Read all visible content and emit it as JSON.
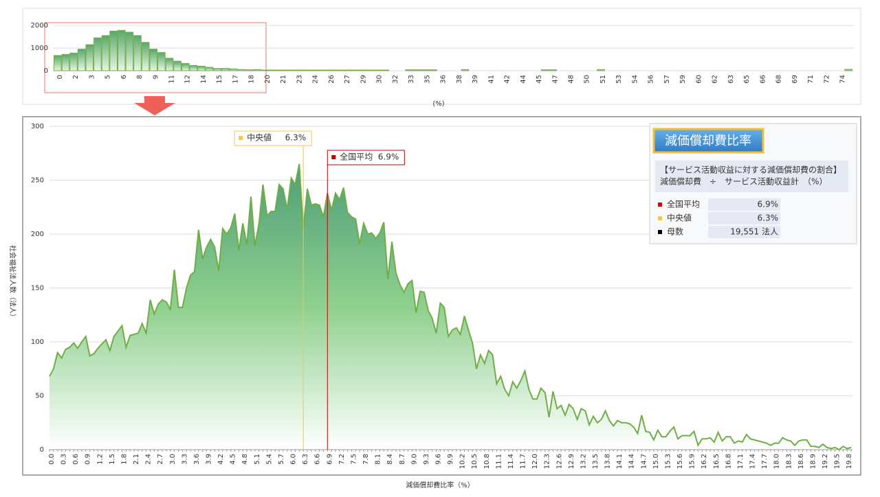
{
  "chart_data": [
    {
      "type": "bar",
      "x_label": "(%)",
      "color": "#70ad47",
      "categories": [
        "0",
        null,
        "2",
        null,
        "3",
        null,
        "5",
        null,
        "6",
        null,
        "8",
        null,
        "9",
        null,
        "11",
        null,
        "12",
        null,
        "14",
        null,
        "15",
        null,
        "17",
        null,
        "18",
        null,
        "20",
        null,
        "21",
        null,
        "23",
        null,
        "24",
        null,
        "26",
        null,
        "27",
        null,
        "29",
        null,
        "30",
        null,
        "32",
        null,
        "33",
        null,
        "35",
        null,
        "36",
        null,
        "38",
        null,
        "39",
        null,
        "41",
        null,
        "42",
        null,
        "44",
        null,
        "45",
        null,
        "47",
        null,
        "48",
        null,
        "50",
        null,
        "51",
        null,
        "53",
        null,
        "54",
        null,
        "56",
        null,
        "57",
        null,
        "59",
        null,
        "60",
        null,
        "62",
        null,
        "63",
        null,
        "65",
        null,
        "66",
        null,
        "68",
        null,
        "69",
        null,
        "71",
        null,
        "72",
        null,
        "74",
        null
      ],
      "values": [
        670,
        720,
        780,
        950,
        1150,
        1450,
        1550,
        1750,
        1780,
        1700,
        1550,
        1250,
        950,
        800,
        550,
        420,
        320,
        230,
        200,
        150,
        100,
        100,
        80,
        50,
        40,
        50,
        30,
        30,
        30,
        30,
        30,
        30,
        30,
        30,
        30,
        30,
        30,
        30,
        30,
        30,
        30,
        30,
        0,
        0,
        40,
        40,
        40,
        40,
        0,
        0,
        0,
        50,
        0,
        0,
        0,
        0,
        0,
        0,
        0,
        0,
        0,
        40,
        40,
        0,
        0,
        0,
        0,
        0,
        50,
        0,
        0,
        0,
        0,
        0,
        0,
        0,
        0,
        0,
        0,
        0,
        0,
        0,
        0,
        0,
        0,
        0,
        0,
        0,
        0,
        0,
        0,
        0,
        0,
        0,
        0,
        0,
        0,
        0,
        0,
        60
      ],
      "ylim": [
        0,
        2000
      ],
      "yticks": [
        0,
        1000,
        2000
      ],
      "grid": true
    },
    {
      "type": "area",
      "x_label": "減価償却費比率（%）",
      "y_label": "社会福祉法人数（法人）",
      "xlim": [
        0,
        19.9
      ],
      "categories": [
        "0.0",
        null,
        null,
        "0.3",
        null,
        null,
        "0.6",
        null,
        null,
        "0.9",
        null,
        null,
        "1.2",
        null,
        null,
        "1.5",
        null,
        null,
        "1.8",
        null,
        null,
        "2.1",
        null,
        null,
        "2.4",
        null,
        null,
        "2.7",
        null,
        null,
        "3.0",
        null,
        null,
        "3.3",
        null,
        null,
        "3.6",
        null,
        null,
        "3.9",
        null,
        null,
        "4.2",
        null,
        null,
        "4.5",
        null,
        null,
        "4.8",
        null,
        null,
        "5.1",
        null,
        null,
        "5.4",
        null,
        null,
        "5.7",
        null,
        null,
        "6.0",
        null,
        null,
        "6.3",
        null,
        null,
        "6.6",
        null,
        null,
        "6.9",
        null,
        null,
        "7.2",
        null,
        null,
        "7.5",
        null,
        null,
        "7.8",
        null,
        null,
        "8.1",
        null,
        null,
        "8.4",
        null,
        null,
        "8.7",
        null,
        null,
        "9.0",
        null,
        null,
        "9.3",
        null,
        null,
        "9.6",
        null,
        null,
        "9.9",
        null,
        null,
        "10.2",
        null,
        null,
        "10.5",
        null,
        null,
        "10.8",
        null,
        null,
        "11.1",
        null,
        null,
        "11.4",
        null,
        null,
        "11.7",
        null,
        null,
        "12.0",
        null,
        null,
        "12.3",
        null,
        null,
        "12.6",
        null,
        null,
        "12.9",
        null,
        null,
        "13.2",
        null,
        null,
        "13.5",
        null,
        null,
        "13.8",
        null,
        null,
        "14.1",
        null,
        null,
        "14.4",
        null,
        null,
        "14.7",
        null,
        null,
        "15.0",
        null,
        null,
        "15.3",
        null,
        null,
        "15.6",
        null,
        null,
        "15.9",
        null,
        null,
        "16.2",
        null,
        null,
        "16.5",
        null,
        null,
        "16.8",
        null,
        null,
        "17.1",
        null,
        null,
        "17.4",
        null,
        null,
        "17.7",
        null,
        null,
        "18.0",
        null,
        null,
        "18.3",
        null,
        null,
        "18.6",
        null,
        null,
        "18.9",
        null,
        null,
        "19.2",
        null,
        null,
        "19.5",
        null,
        null,
        "19.8",
        null
      ],
      "series": [
        {
          "color": "#70ad47",
          "values": [
            68,
            75,
            90,
            85,
            93,
            95,
            99,
            94,
            100,
            105,
            87,
            89,
            94,
            98,
            102,
            92,
            105,
            110,
            115,
            95,
            106,
            107,
            108,
            117,
            108,
            139,
            126,
            135,
            139,
            137,
            130,
            167,
            132,
            132,
            150,
            162,
            165,
            204,
            177,
            188,
            195,
            188,
            166,
            205,
            200,
            206,
            219,
            185,
            210,
            190,
            235,
            189,
            210,
            246,
            217,
            221,
            221,
            246,
            242,
            223,
            252,
            246,
            265,
            205,
            242,
            227,
            228,
            227,
            216,
            238,
            222,
            238,
            232,
            243,
            220,
            216,
            214,
            191,
            210,
            200,
            201,
            196,
            201,
            211,
            158,
            193,
            164,
            153,
            146,
            154,
            157,
            127,
            147,
            146,
            129,
            122,
            108,
            136,
            132,
            105,
            111,
            113,
            107,
            124,
            111,
            99,
            75,
            88,
            80,
            92,
            88,
            61,
            68,
            56,
            50,
            63,
            57,
            64,
            73,
            56,
            47,
            47,
            57,
            53,
            30,
            54,
            38,
            41,
            32,
            42,
            38,
            28,
            38,
            36,
            23,
            31,
            25,
            28,
            36,
            27,
            22,
            27,
            25,
            25,
            24,
            21,
            15,
            32,
            17,
            16,
            9,
            18,
            12,
            12,
            17,
            21,
            10,
            13,
            13,
            13,
            17,
            4,
            10,
            10,
            11,
            7,
            16,
            8,
            12,
            12,
            6,
            8,
            7,
            14,
            10,
            9,
            8,
            7,
            6,
            4,
            6,
            6,
            11,
            9,
            8,
            4,
            8,
            9,
            9,
            3,
            3,
            2,
            5,
            2,
            1,
            2,
            0,
            3,
            1,
            2
          ]
        }
      ],
      "markers": [
        {
          "label": "中央値",
          "value": 6.3,
          "text": "6.3%",
          "color": "#f5c842"
        },
        {
          "label": "全国平均",
          "value": 6.9,
          "text": "6.9%",
          "color": "#c00000"
        }
      ],
      "ylim": [
        0,
        300
      ],
      "yticks": [
        0,
        50,
        100,
        150,
        200,
        250,
        300
      ],
      "grid": true
    }
  ],
  "info_panel": {
    "title": "減価償却費比率",
    "description": [
      "【サービス活動収益に対する減価償却費の割合】",
      "減価償却費　÷　サービス活動収益計　（%）"
    ],
    "rows": [
      {
        "label": "全国平均",
        "value": "6.9%",
        "color": "#e00000"
      },
      {
        "label": "中央値",
        "value": "6.3%",
        "color": "#f5c842"
      },
      {
        "label": "母数",
        "value": "19,551 法人",
        "color": "#000000"
      }
    ]
  }
}
